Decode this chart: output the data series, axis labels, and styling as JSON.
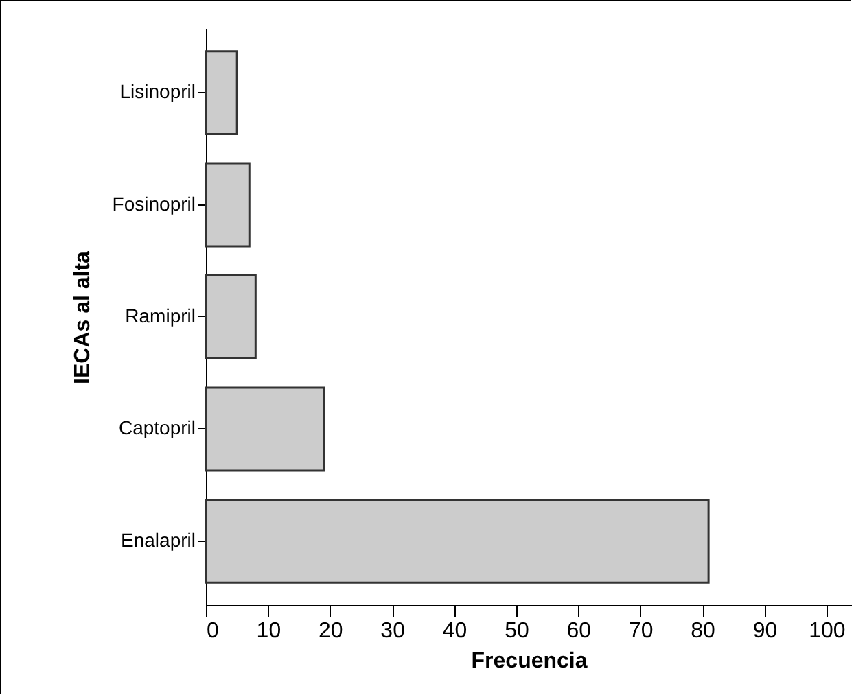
{
  "chart_data": {
    "type": "bar",
    "orientation": "horizontal",
    "xlabel": "Frecuencia",
    "ylabel": "IECAs al alta",
    "categories": [
      "Lisinopril",
      "Fosinopril",
      "Ramipril",
      "Captopril",
      "Enalapril"
    ],
    "values": [
      5,
      7,
      8,
      19,
      81
    ],
    "color": "#cccccc",
    "xlim": [
      0,
      104
    ],
    "xticks": [
      0,
      10,
      20,
      30,
      40,
      50,
      60,
      70,
      80,
      90,
      100
    ],
    "grid": false
  }
}
